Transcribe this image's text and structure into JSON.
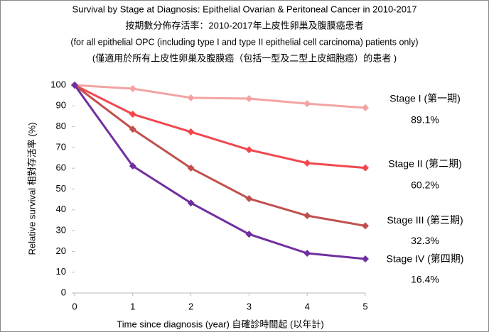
{
  "chart_data": {
    "type": "line",
    "title": "Survival by Stage at Diagnosis: Epithelial Ovarian & Peritoneal Cancer in 2010-2017",
    "subtitles": [
      "按期數分佈存活率：2010-2017年上皮性卵巢及腹膜癌患者",
      "(for all epithelial OPC (including type I and type II epithelial cell carcinoma) patients only)",
      "(僅適用於所有上皮性卵巢及腹膜癌（包括一型及二型上皮細胞癌）的患者 )"
    ],
    "xlabel": "Time since diagnosis (year) 自確診時間起 (以年計)",
    "ylabel": "Relative survival   相對存活率 (%)",
    "x": [
      0,
      1,
      2,
      3,
      4,
      5
    ],
    "xlim": [
      0,
      5
    ],
    "xticks": [
      0,
      1,
      2,
      3,
      4,
      5
    ],
    "ylim": [
      0,
      100
    ],
    "yticks": [
      0,
      10,
      20,
      30,
      40,
      50,
      60,
      70,
      80,
      90,
      100
    ],
    "series": [
      {
        "name": "Stage I (第一期)",
        "color": "#f4a2a2",
        "values": [
          100,
          98.3,
          93.9,
          93.5,
          91.1,
          89.1
        ],
        "value_labels": [
          null,
          null,
          null,
          null,
          null,
          "89.1%"
        ]
      },
      {
        "name": "Stage II (第二期)",
        "color": "#f2474e",
        "values": [
          100,
          86.0,
          77.5,
          68.9,
          62.5,
          60.2
        ],
        "value_labels": [
          null,
          null,
          null,
          null,
          null,
          "60.2%"
        ]
      },
      {
        "name": "Stage III (第三期)",
        "color": "#c0504d",
        "values": [
          100,
          78.8,
          60.1,
          45.4,
          37.2,
          32.3
        ],
        "value_labels": [
          null,
          null,
          null,
          null,
          null,
          "32.3%"
        ]
      },
      {
        "name": "Stage IV (第四期)",
        "color": "#7030a0",
        "values": [
          100,
          61.1,
          43.3,
          28.3,
          19.1,
          16.4
        ],
        "value_labels": [
          null,
          null,
          null,
          null,
          null,
          "16.4%"
        ]
      }
    ]
  }
}
